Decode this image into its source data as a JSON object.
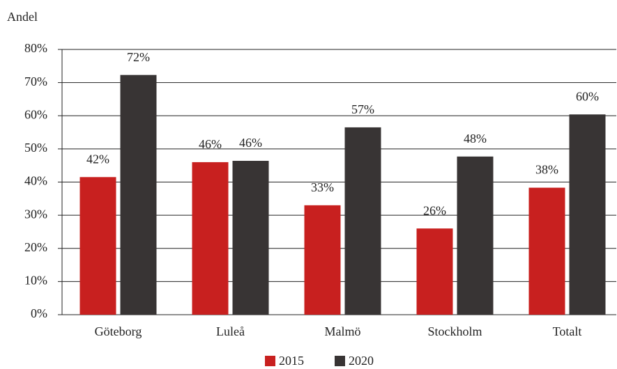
{
  "chart_data": {
    "type": "bar",
    "y_label": "Andel",
    "categories": [
      "Göteborg",
      "Luleå",
      "Malmö",
      "Stockholm",
      "Totalt"
    ],
    "series": [
      {
        "name": "2015",
        "color": "#c8201f",
        "values": [
          41.5,
          46,
          33,
          26,
          38.3
        ],
        "value_labels": [
          "42%",
          "46%",
          "33%",
          "26%",
          "38%"
        ]
      },
      {
        "name": "2020",
        "color": "#383434",
        "values": [
          72.3,
          46.4,
          56.5,
          47.7,
          60.4
        ],
        "value_labels": [
          "72%",
          "46%",
          "57%",
          "48%",
          "60%"
        ]
      }
    ],
    "ylim": [
      0,
      80
    ],
    "yticks": [
      {
        "value": 0,
        "label": "0%"
      },
      {
        "value": 10,
        "label": "10%"
      },
      {
        "value": 20,
        "label": "20%"
      },
      {
        "value": 30,
        "label": "30%"
      },
      {
        "value": 40,
        "label": "40%"
      },
      {
        "value": 50,
        "label": "50%"
      },
      {
        "value": 60,
        "label": "60%"
      },
      {
        "value": 70,
        "label": "70%"
      },
      {
        "value": 80,
        "label": "80%"
      }
    ],
    "grid": true,
    "legend": "bottom"
  }
}
